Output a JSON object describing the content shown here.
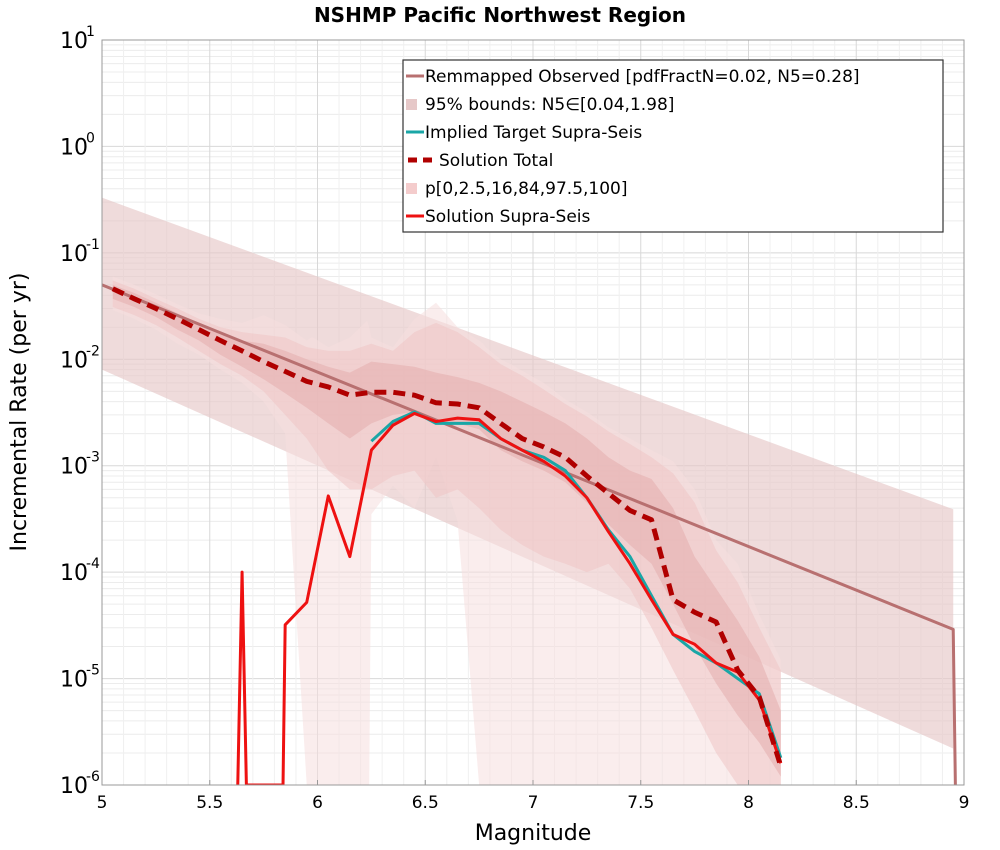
{
  "chart_data": {
    "type": "line",
    "title": "NSHMP Pacific Northwest Region",
    "xlabel": "Magnitude",
    "ylabel": "Incremental Rate (per yr)",
    "xlim": [
      5,
      9
    ],
    "ylim": [
      1e-06,
      10
    ],
    "yscale": "log",
    "grid": true,
    "legend_position": "top-right",
    "x_ticks": [
      "5",
      "5.5",
      "6",
      "6.5",
      "7",
      "7.5",
      "8",
      "8.5",
      "9"
    ],
    "y_ticks": [
      {
        "base": "10",
        "exp": "-6",
        "value": 1e-06
      },
      {
        "base": "10",
        "exp": "-5",
        "value": 1e-05
      },
      {
        "base": "10",
        "exp": "-4",
        "value": 0.0001
      },
      {
        "base": "10",
        "exp": "-3",
        "value": 0.001
      },
      {
        "base": "10",
        "exp": "-2",
        "value": 0.01
      },
      {
        "base": "10",
        "exp": "-1",
        "value": 0.1
      },
      {
        "base": "10",
        "exp": "0",
        "value": 1
      },
      {
        "base": "10",
        "exp": "1",
        "value": 10
      }
    ],
    "legend": [
      {
        "label": "Remmapped Observed [pdfFractN=0.02, N5=0.28]",
        "kind": "line",
        "color": "#b87070"
      },
      {
        "label": "95% bounds: N5∈[0.04,1.98]",
        "kind": "band",
        "color": "#e6c8c8"
      },
      {
        "label": "Implied Target Supra-Seis",
        "kind": "line",
        "color": "#1aa6a6"
      },
      {
        "label": "Solution Total",
        "kind": "dashed",
        "color": "#b00000"
      },
      {
        "label": "p[0,2.5,16,84,97.5,100]",
        "kind": "band",
        "color": "#f4cccc"
      },
      {
        "label": "Solution Supra-Seis",
        "kind": "line",
        "color": "#ee1111"
      }
    ],
    "series": [
      {
        "name": "Remmapped Observed [pdfFractN=0.02, N5=0.28]",
        "color": "#b87070",
        "x": [
          5.0,
          8.95,
          8.96
        ],
        "y": [
          0.05,
          2.9e-05,
          1e-06
        ]
      },
      {
        "name": "95% bounds: N5∈[0.04,1.98]",
        "kind": "band",
        "color": "#e6c8c8",
        "x": [
          5.0,
          8.95
        ],
        "lower": [
          0.008,
          2.2e-06
        ],
        "upper": [
          0.33,
          0.00039
        ]
      },
      {
        "name": "p[0,2.5,16,84,97.5,100]",
        "kind": "band-layer",
        "level": "0-100",
        "color": "#f6dede",
        "x": [
          5.05,
          5.15,
          5.25,
          5.35,
          5.45,
          5.55,
          5.65,
          5.75,
          5.85,
          5.95,
          5.97,
          5.98,
          6.05,
          6.15,
          6.23,
          6.24,
          6.25,
          6.35,
          6.45,
          6.55,
          6.65,
          6.75,
          6.77,
          6.78,
          6.85,
          6.92,
          6.93,
          6.95,
          7.05,
          7.15,
          7.25,
          7.26,
          7.27,
          7.35,
          7.45,
          7.55,
          7.65,
          7.75,
          7.85,
          7.95,
          8.05,
          8.15
        ],
        "lower": [
          0.029,
          0.024,
          0.019,
          0.014,
          0.011,
          0.008,
          0.006,
          0.004,
          0.002,
          1e-06,
          1e-06,
          1e-06,
          1e-06,
          1e-06,
          1e-06,
          1e-06,
          0.00035,
          0.00065,
          0.0004,
          0.0012,
          0.0003,
          1e-06,
          1e-06,
          1e-06,
          1e-06,
          1e-06,
          1e-06,
          1e-06,
          1e-06,
          1e-06,
          1e-06,
          1e-06,
          1e-06,
          1e-06,
          1e-06,
          1e-06,
          1e-06,
          1e-06,
          1e-06,
          1e-06,
          1e-06,
          1e-06
        ],
        "upper": [
          0.06,
          0.05,
          0.041,
          0.033,
          0.027,
          0.024,
          0.022,
          0.026,
          0.021,
          0.015,
          0.016,
          0.016,
          0.013,
          0.016,
          0.023,
          0.02,
          0.016,
          0.013,
          0.024,
          0.034,
          0.02,
          0.015,
          0.014,
          0.013,
          0.01,
          0.0085,
          0.0082,
          0.0078,
          0.006,
          0.0042,
          0.0032,
          0.0031,
          0.003,
          0.0023,
          0.0018,
          0.0014,
          0.0011,
          0.0006,
          0.0002,
          0.00012,
          4e-05,
          1.5e-05
        ]
      },
      {
        "name": "p[0,2.5,16,84,97.5,100]",
        "kind": "band-layer",
        "level": "2.5-97.5",
        "color": "#eec4c4",
        "x": [
          5.05,
          5.15,
          5.25,
          5.35,
          5.45,
          5.55,
          5.65,
          5.75,
          5.85,
          5.95,
          6.05,
          6.15,
          6.25,
          6.35,
          6.45,
          6.55,
          6.65,
          6.75,
          6.85,
          6.95,
          7.05,
          7.15,
          7.25,
          7.35,
          7.45,
          7.55,
          7.65,
          7.75,
          7.85,
          7.95,
          8.05,
          8.15
        ],
        "lower": [
          0.031,
          0.026,
          0.021,
          0.016,
          0.012,
          0.009,
          0.007,
          0.005,
          0.003,
          0.0018,
          0.0009,
          0.0006,
          0.0006,
          0.0008,
          0.0009,
          0.0005,
          0.0006,
          0.0004,
          0.00025,
          0.00018,
          0.00014,
          0.00012,
          0.0001,
          0.00012,
          7e-05,
          3e-05,
          1.2e-05,
          5e-06,
          2e-06,
          1e-06,
          1e-06,
          1e-06
        ],
        "upper": [
          0.055,
          0.046,
          0.037,
          0.03,
          0.024,
          0.02,
          0.018,
          0.017,
          0.016,
          0.013,
          0.012,
          0.012,
          0.014,
          0.012,
          0.018,
          0.022,
          0.018,
          0.013,
          0.009,
          0.007,
          0.0052,
          0.0038,
          0.0029,
          0.0021,
          0.0016,
          0.0012,
          0.00085,
          0.00045,
          0.00016,
          8e-05,
          3e-05,
          1.2e-05
        ]
      },
      {
        "name": "p[0,2.5,16,84,97.5,100]",
        "kind": "band-layer",
        "level": "16-84",
        "color": "#e4adad",
        "x": [
          5.05,
          5.15,
          5.25,
          5.35,
          5.45,
          5.55,
          5.65,
          5.75,
          5.85,
          5.95,
          6.05,
          6.15,
          6.25,
          6.35,
          6.45,
          6.55,
          6.65,
          6.75,
          6.85,
          6.95,
          7.05,
          7.15,
          7.25,
          7.35,
          7.45,
          7.55,
          7.65,
          7.75,
          7.85,
          7.95,
          8.05,
          8.15
        ],
        "lower": [
          0.037,
          0.031,
          0.025,
          0.019,
          0.015,
          0.011,
          0.0085,
          0.0065,
          0.0048,
          0.0035,
          0.0025,
          0.0018,
          0.0025,
          0.003,
          0.0032,
          0.0026,
          0.0025,
          0.0022,
          0.0014,
          0.0011,
          0.0009,
          0.0007,
          0.00045,
          0.00028,
          0.00018,
          0.00012,
          5e-05,
          2e-05,
          9e-06,
          4.5e-06,
          2.5e-06,
          1.2e-06
        ],
        "upper": [
          0.05,
          0.042,
          0.034,
          0.027,
          0.021,
          0.017,
          0.015,
          0.014,
          0.012,
          0.01,
          0.0085,
          0.0075,
          0.0095,
          0.009,
          0.0085,
          0.0075,
          0.0068,
          0.006,
          0.005,
          0.004,
          0.0032,
          0.0025,
          0.0018,
          0.0012,
          0.0009,
          0.00075,
          0.0004,
          0.00014,
          7e-05,
          3.5e-05,
          1.6e-05,
          5e-06
        ]
      },
      {
        "name": "Implied Target Supra-Seis",
        "color": "#1aa6a6",
        "x": [
          6.25,
          6.35,
          6.45,
          6.55,
          6.65,
          6.75,
          6.85,
          6.95,
          7.05,
          7.15,
          7.25,
          7.35,
          7.45,
          7.55,
          7.65,
          7.75,
          7.85,
          7.95,
          8.05,
          8.15
        ],
        "y": [
          0.0017,
          0.0026,
          0.0032,
          0.0025,
          0.0025,
          0.0025,
          0.0018,
          0.0014,
          0.0012,
          0.0009,
          0.0005,
          0.00025,
          0.00014,
          6e-05,
          2.6e-05,
          1.8e-05,
          1.4e-05,
          1e-05,
          7.2e-06,
          1.8e-06
        ]
      },
      {
        "name": "Solution Supra-Seis",
        "color": "#ee1111",
        "x": [
          5.63,
          5.65,
          5.67,
          5.84,
          5.85,
          5.95,
          6.05,
          6.15,
          6.25,
          6.35,
          6.45,
          6.55,
          6.65,
          6.75,
          6.85,
          6.95,
          7.05,
          7.15,
          7.25,
          7.35,
          7.45,
          7.55,
          7.65,
          7.75,
          7.85,
          7.95,
          8.05,
          8.15
        ],
        "y": [
          1e-06,
          0.0001,
          1e-06,
          1e-06,
          3.2e-05,
          5.2e-05,
          0.00052,
          0.00014,
          0.0014,
          0.0024,
          0.0031,
          0.0026,
          0.0028,
          0.0027,
          0.0018,
          0.0014,
          0.0011,
          0.0008,
          0.0005,
          0.00024,
          0.00012,
          5.5e-05,
          2.6e-05,
          2.1e-05,
          1.4e-05,
          1.15e-05,
          6.3e-06,
          1.6e-06
        ]
      },
      {
        "name": "Solution Total",
        "color": "#b00000",
        "dashed": true,
        "x": [
          5.05,
          5.15,
          5.25,
          5.35,
          5.45,
          5.55,
          5.65,
          5.75,
          5.85,
          5.95,
          6.05,
          6.15,
          6.25,
          6.35,
          6.45,
          6.55,
          6.65,
          6.75,
          6.85,
          6.95,
          7.05,
          7.15,
          7.25,
          7.35,
          7.45,
          7.55,
          7.65,
          7.75,
          7.85,
          7.95,
          8.05,
          8.15
        ],
        "y": [
          0.046,
          0.037,
          0.03,
          0.024,
          0.019,
          0.015,
          0.012,
          0.0095,
          0.0077,
          0.0062,
          0.0055,
          0.0046,
          0.0049,
          0.0049,
          0.0046,
          0.0039,
          0.0038,
          0.0035,
          0.0025,
          0.0018,
          0.0015,
          0.0012,
          0.0008,
          0.00055,
          0.00038,
          0.00031,
          5.5e-05,
          4.2e-05,
          3.4e-05,
          1.2e-05,
          6.7e-06,
          1.5e-06
        ]
      }
    ]
  }
}
